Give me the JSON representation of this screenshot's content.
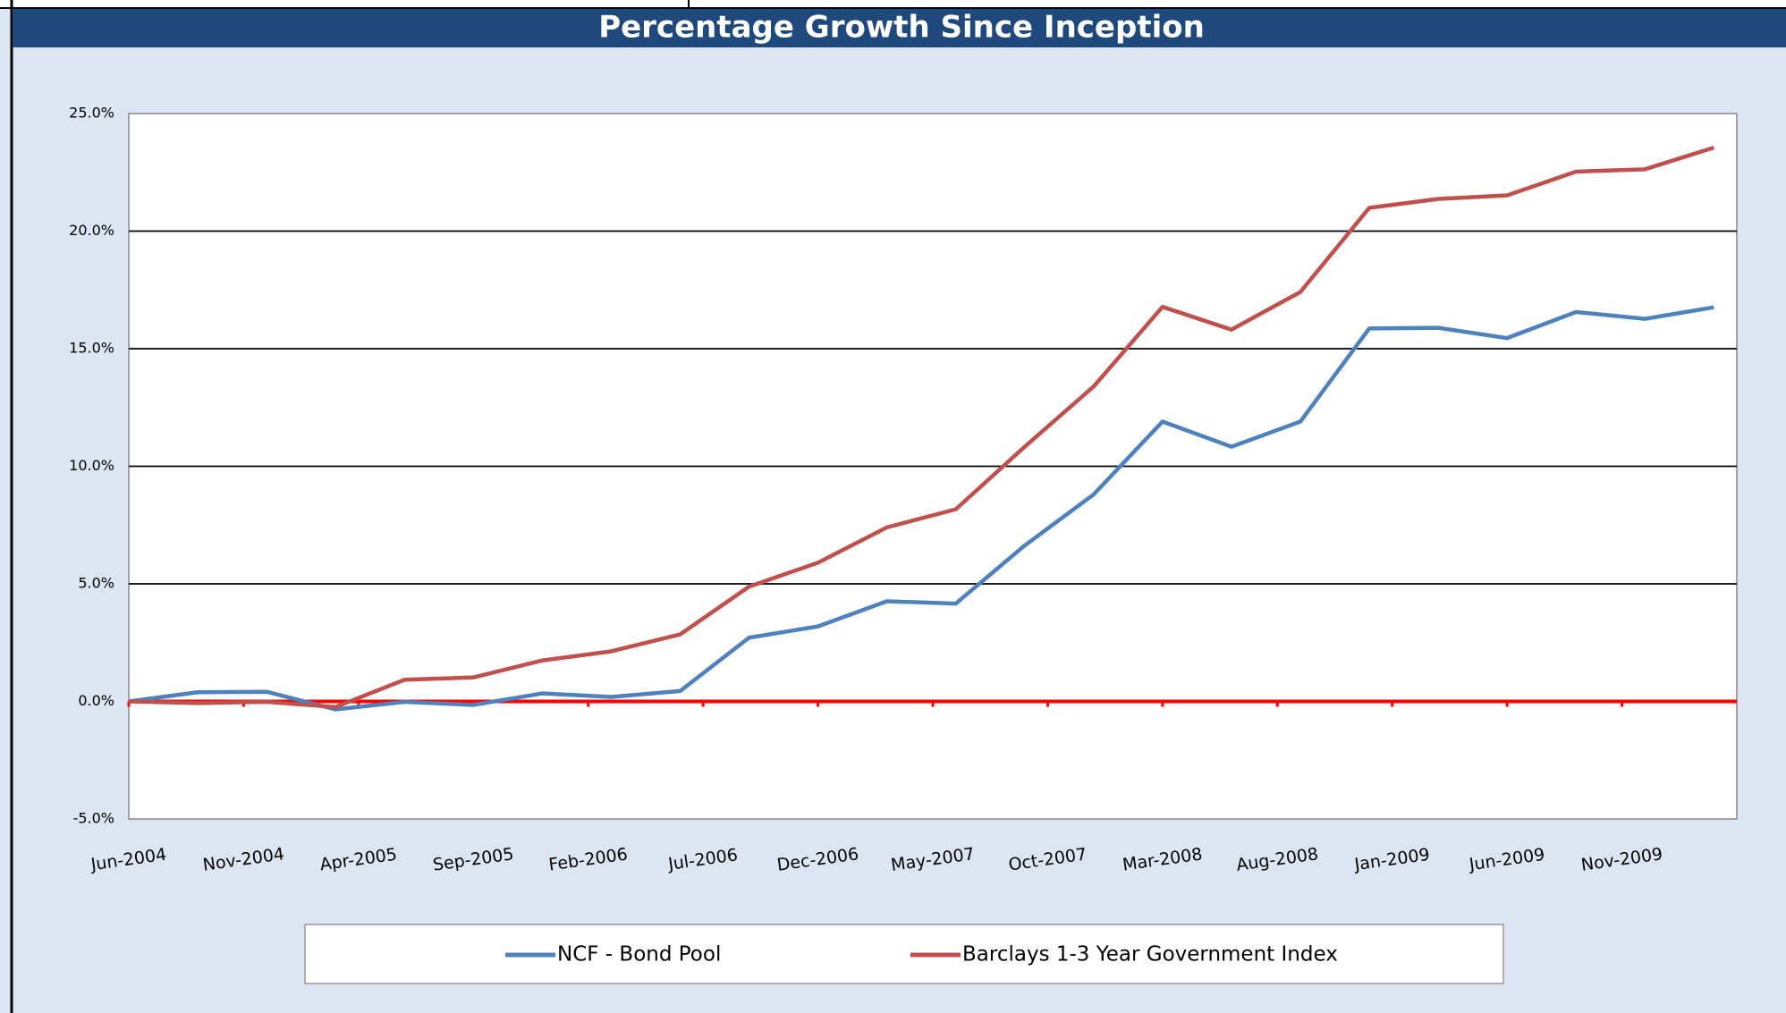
{
  "chart_data": {
    "type": "line",
    "title": "Percentage Growth Since Inception",
    "x": [
      "2004-06",
      "2004-09",
      "2004-12",
      "2005-03",
      "2005-06",
      "2005-09",
      "2005-12",
      "2006-03",
      "2006-06",
      "2006-09",
      "2006-12",
      "2007-03",
      "2007-06",
      "2007-09",
      "2007-12",
      "2008-03",
      "2008-06",
      "2008-09",
      "2008-12",
      "2009-03",
      "2009-06",
      "2009-09",
      "2009-12",
      "2010-03"
    ],
    "series": [
      {
        "name": "NCF - Bond Pool",
        "color": "#4f81bd",
        "values": [
          0,
          0.39,
          0.41,
          -0.34,
          -0.02,
          -0.15,
          0.34,
          0.19,
          0.44,
          2.71,
          3.19,
          4.26,
          4.16,
          6.63,
          8.8,
          11.9,
          10.83,
          11.9,
          15.86,
          15.89,
          15.45,
          16.56,
          16.27,
          16.76
        ]
      },
      {
        "name": "Barclays 1-3 Year Government Index",
        "color": "#c0504d",
        "values": [
          0,
          -0.07,
          -0.02,
          -0.24,
          0.92,
          1.02,
          1.74,
          2.13,
          2.85,
          4.88,
          5.9,
          7.4,
          8.17,
          10.83,
          13.39,
          16.78,
          15.81,
          17.41,
          20.99,
          21.37,
          21.52,
          22.53,
          22.63,
          23.55
        ]
      }
    ],
    "xlim": [
      "2004-06",
      "2010-04"
    ],
    "xticks": [
      {
        "value": "2004-06",
        "label": "Jun-2004"
      },
      {
        "value": "2004-11",
        "label": "Nov-2004"
      },
      {
        "value": "2005-04",
        "label": "Apr-2005"
      },
      {
        "value": "2005-09",
        "label": "Sep-2005"
      },
      {
        "value": "2006-02",
        "label": "Feb-2006"
      },
      {
        "value": "2006-07",
        "label": "Jul-2006"
      },
      {
        "value": "2006-12",
        "label": "Dec-2006"
      },
      {
        "value": "2007-05",
        "label": "May-2007"
      },
      {
        "value": "2007-10",
        "label": "Oct-2007"
      },
      {
        "value": "2008-03",
        "label": "Mar-2008"
      },
      {
        "value": "2008-08",
        "label": "Aug-2008"
      },
      {
        "value": "2009-01",
        "label": "Jan-2009"
      },
      {
        "value": "2009-06",
        "label": "Jun-2009"
      },
      {
        "value": "2009-11",
        "label": "Nov-2009"
      }
    ],
    "ylim": [
      -5,
      25
    ],
    "yticks": [
      {
        "value": -5,
        "label": "-5.0%"
      },
      {
        "value": 0,
        "label": "0.0%"
      },
      {
        "value": 5,
        "label": "5.0%"
      },
      {
        "value": 10,
        "label": "10.0%"
      },
      {
        "value": 15,
        "label": "15.0%"
      },
      {
        "value": 20,
        "label": "20.0%"
      },
      {
        "value": 25,
        "label": "25.0%"
      }
    ],
    "grid": true,
    "zero_line_color": "#ff0000",
    "legend": "bottom"
  }
}
